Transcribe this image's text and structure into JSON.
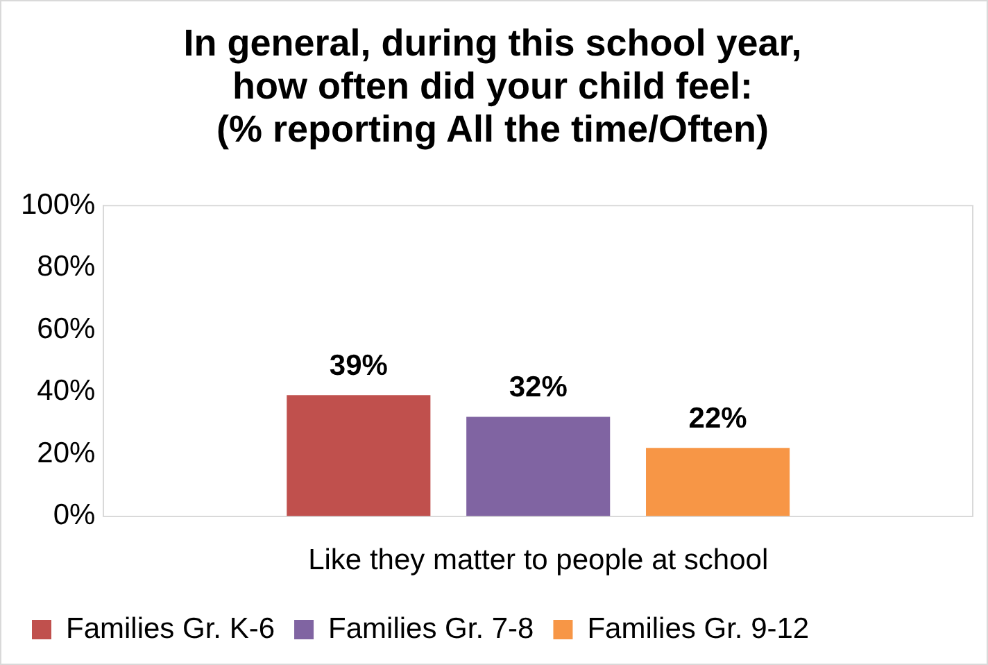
{
  "chart_data": {
    "type": "bar",
    "title": "In general, during this school year,\nhow often did your child feel:\n(% reporting All the time/Often)",
    "categories": [
      "Like they matter to people at school"
    ],
    "series": [
      {
        "name": "Families Gr. K-6",
        "color": "#c0504d",
        "values": [
          39
        ]
      },
      {
        "name": "Families Gr. 7-8",
        "color": "#8064a2",
        "values": [
          32
        ]
      },
      {
        "name": "Families Gr. 9-12",
        "color": "#f79646",
        "values": [
          22
        ]
      }
    ],
    "value_labels": [
      [
        "39%"
      ],
      [
        "32%"
      ],
      [
        "22%"
      ]
    ],
    "ylim": [
      0,
      100
    ],
    "yticks": [
      {
        "value": 0,
        "label": "0%"
      },
      {
        "value": 20,
        "label": "20%"
      },
      {
        "value": 40,
        "label": "40%"
      },
      {
        "value": 60,
        "label": "60%"
      },
      {
        "value": 80,
        "label": "80%"
      },
      {
        "value": 100,
        "label": "100%"
      }
    ],
    "grid": false,
    "legend": "bottom"
  }
}
